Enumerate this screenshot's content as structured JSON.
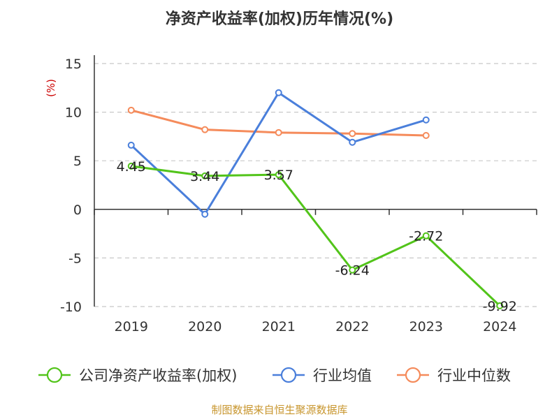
{
  "chart_data": {
    "type": "line",
    "title": "净资产收益率(加权)历年情况(%)",
    "ylabel": "(%)",
    "xlabel": "",
    "categories": [
      "2019",
      "2020",
      "2021",
      "2022",
      "2023",
      "2024"
    ],
    "y_ticks": [
      "15",
      "10",
      "5",
      "0",
      "-5",
      "-10"
    ],
    "ylim": [
      -10,
      15
    ],
    "grid": true,
    "legend_position": "bottom",
    "series": [
      {
        "name": "公司净资产收益率(加权)",
        "color": "#52c41a",
        "values": [
          4.45,
          3.44,
          3.57,
          -6.24,
          -2.72,
          -9.92
        ],
        "labels": [
          "4.45",
          "3.44",
          "3.57",
          "-6.24",
          "-2.72",
          "-9.92"
        ]
      },
      {
        "name": "行业均值",
        "color": "#4a7fdb",
        "values": [
          6.6,
          -0.5,
          12.0,
          6.9,
          9.2,
          null
        ]
      },
      {
        "name": "行业中位数",
        "color": "#f58b5b",
        "values": [
          10.2,
          8.2,
          7.9,
          7.8,
          7.6,
          null
        ]
      }
    ],
    "source": "制图数据来自恒生聚源数据库",
    "ylabel_color": "#cc0000",
    "source_color": "#c8962e"
  }
}
